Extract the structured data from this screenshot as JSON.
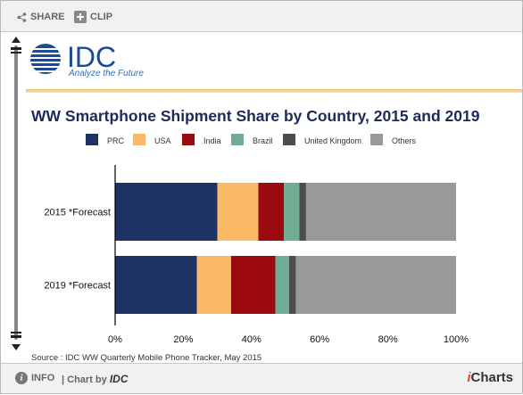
{
  "toolbar": {
    "share_label": "SHARE",
    "clip_label": "CLIP"
  },
  "logo": {
    "name": "IDC",
    "tagline": "Analyze the Future"
  },
  "chart_data": {
    "type": "bar",
    "orientation": "horizontal",
    "stacked": true,
    "title": "WW Smartphone Shipment Share by Country, 2015 and 2019",
    "categories": [
      "2015 *Forecast",
      "2019 *Forecast"
    ],
    "series": [
      {
        "name": "PRC",
        "color": "#1f3264",
        "values": [
          30,
          24
        ]
      },
      {
        "name": "USA",
        "color": "#f9b965",
        "values": [
          12,
          10
        ]
      },
      {
        "name": "India",
        "color": "#9b0a0f",
        "values": [
          7.5,
          13
        ]
      },
      {
        "name": "Brazil",
        "color": "#70ad94",
        "values": [
          4.5,
          4
        ]
      },
      {
        "name": "United Kingdom",
        "color": "#4d4d4d",
        "values": [
          2,
          2
        ]
      },
      {
        "name": "Others",
        "color": "#999999",
        "values": [
          44,
          47
        ]
      }
    ],
    "xlim": [
      0,
      100
    ],
    "xticks": [
      "0%",
      "20%",
      "40%",
      "60%",
      "80%",
      "100%"
    ],
    "legend_position": "top",
    "grid": false,
    "source": "Source : IDC WW Quarterly Mobile Phone Tracker, May 2015"
  },
  "footer": {
    "info_label": "INFO",
    "chartby_prefix": "| Chart by",
    "chartby_brand": "IDC",
    "brand_i": "i",
    "brand_rest": "Charts"
  }
}
